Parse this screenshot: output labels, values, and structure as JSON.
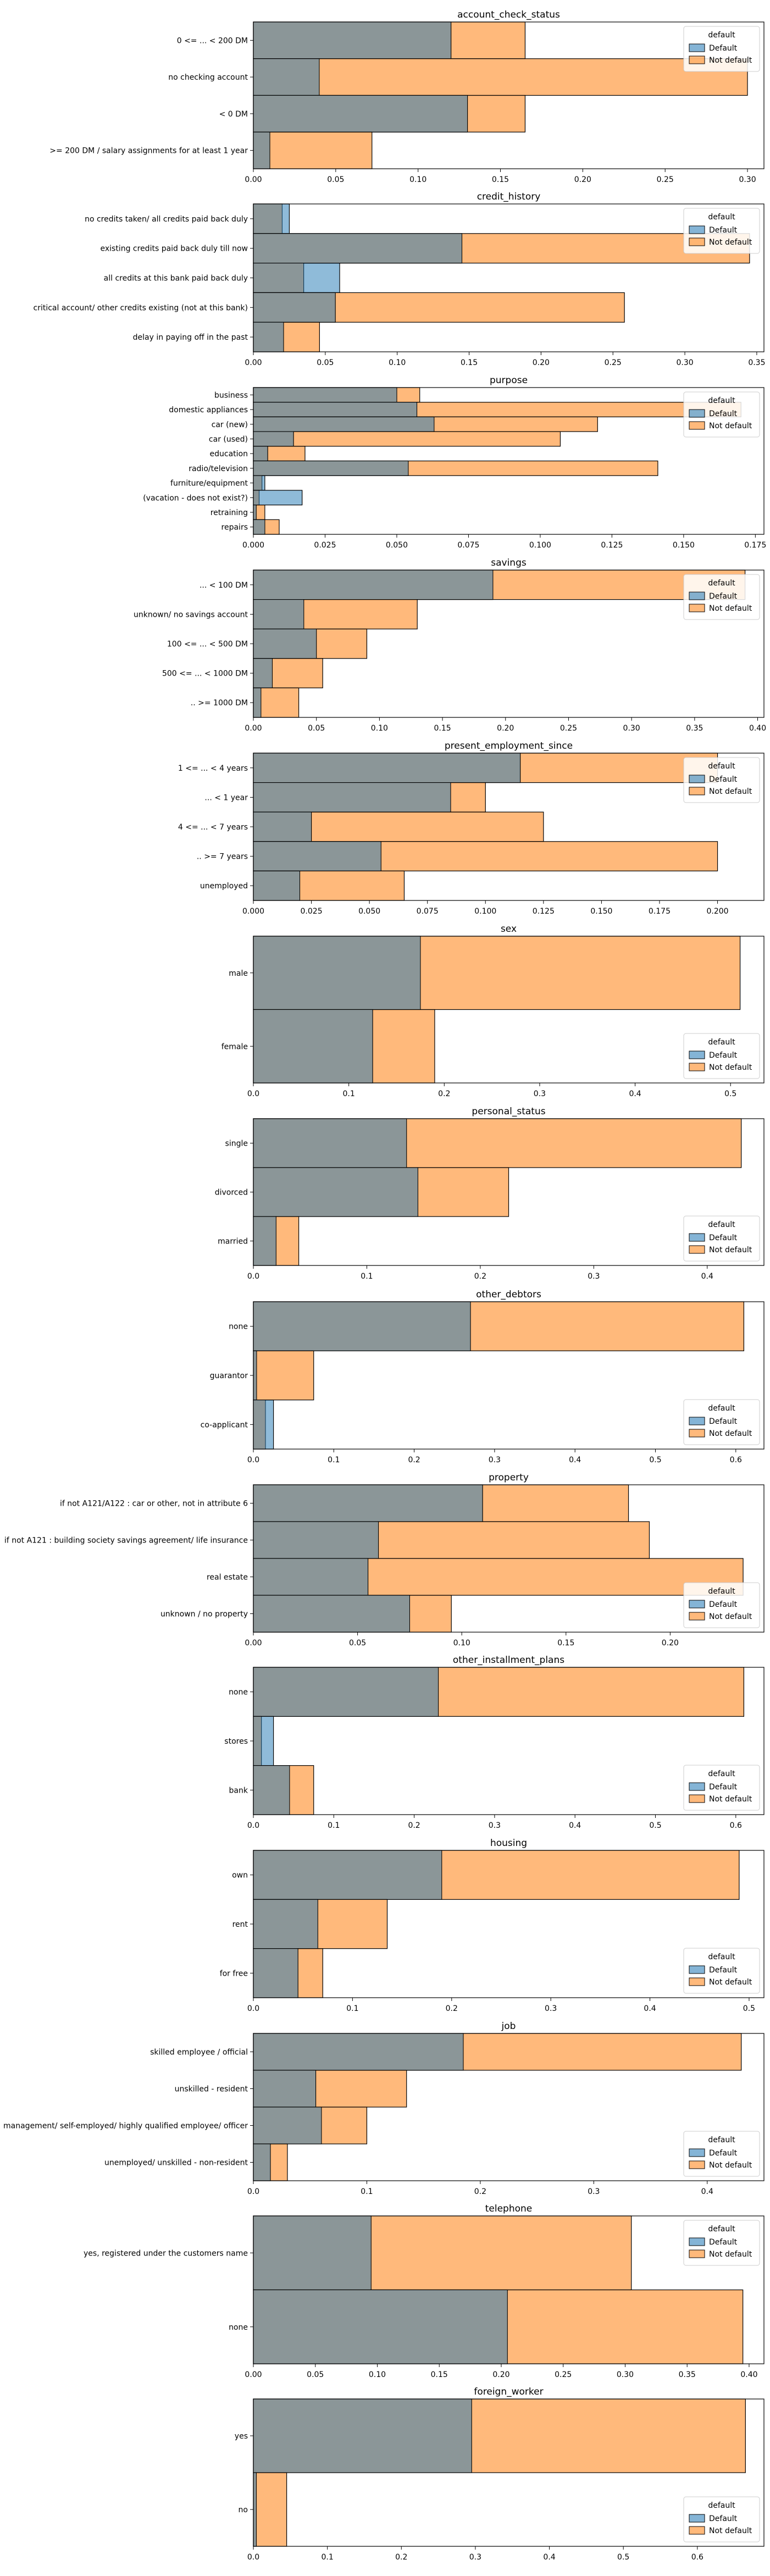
{
  "colors": {
    "default": "#1f77b4",
    "not_default": "#ff7f0e",
    "overlap": "#8b9698"
  },
  "legend": {
    "title": "default",
    "items": [
      "Default",
      "Not default"
    ],
    "placement": "top-right"
  },
  "chart_data": [
    {
      "type": "bar",
      "orientation": "horizontal",
      "stacked": "overlay",
      "title": "account_check_status",
      "categories": [
        "0 <= ... < 200 DM",
        "no checking account",
        "< 0 DM",
        ">= 200 DM / salary assignments for at least 1 year"
      ],
      "series": [
        {
          "name": "Default",
          "values": [
            0.12,
            0.04,
            0.13,
            0.01
          ]
        },
        {
          "name": "Not default",
          "values": [
            0.165,
            0.3,
            0.165,
            0.072
          ]
        }
      ],
      "xlim": [
        0,
        0.31
      ],
      "xticks": [
        0.0,
        0.05,
        0.1,
        0.15,
        0.2,
        0.25,
        0.3
      ],
      "legend_loc": "top-right"
    },
    {
      "type": "bar",
      "orientation": "horizontal",
      "stacked": "overlay",
      "title": "credit_history",
      "categories": [
        "no credits taken/ all credits paid back duly",
        "existing credits paid back duly till now",
        "all credits at this bank paid back duly",
        "critical account/ other credits existing (not at this bank)",
        "delay in paying off in the past"
      ],
      "series": [
        {
          "name": "Default",
          "values": [
            0.025,
            0.145,
            0.06,
            0.057,
            0.021
          ]
        },
        {
          "name": "Not default",
          "values": [
            0.02,
            0.345,
            0.035,
            0.258,
            0.046
          ]
        }
      ],
      "xlim": [
        0,
        0.355
      ],
      "xticks": [
        0.0,
        0.05,
        0.1,
        0.15,
        0.2,
        0.25,
        0.3,
        0.35
      ],
      "legend_loc": "top-right"
    },
    {
      "type": "bar",
      "orientation": "horizontal",
      "stacked": "overlay",
      "title": "purpose",
      "categories": [
        "business",
        "domestic appliances",
        "car (new)",
        "car (used)",
        "education",
        "radio/television",
        "furniture/equipment",
        "(vacation - does not exist?)",
        "retraining",
        "repairs"
      ],
      "series": [
        {
          "name": "Default",
          "values": [
            0.05,
            0.057,
            0.063,
            0.014,
            0.005,
            0.054,
            0.004,
            0.017,
            0.001,
            0.004
          ]
        },
        {
          "name": "Not default",
          "values": [
            0.058,
            0.17,
            0.12,
            0.107,
            0.018,
            0.141,
            0.003,
            0.002,
            0.004,
            0.009
          ]
        }
      ],
      "xlim": [
        0,
        0.178
      ],
      "xticks": [
        0.0,
        0.025,
        0.05,
        0.075,
        0.1,
        0.125,
        0.15,
        0.175
      ],
      "legend_loc": "top-right"
    },
    {
      "type": "bar",
      "orientation": "horizontal",
      "stacked": "overlay",
      "title": "savings",
      "categories": [
        "... < 100 DM",
        "unknown/ no savings account",
        "100 <= ... < 500 DM",
        "500 <= ... < 1000 DM",
        ".. >= 1000 DM"
      ],
      "series": [
        {
          "name": "Default",
          "values": [
            0.19,
            0.04,
            0.05,
            0.015,
            0.006
          ]
        },
        {
          "name": "Not default",
          "values": [
            0.39,
            0.13,
            0.09,
            0.055,
            0.036
          ]
        }
      ],
      "xlim": [
        0,
        0.405
      ],
      "xticks": [
        0.0,
        0.05,
        0.1,
        0.15,
        0.2,
        0.25,
        0.3,
        0.35,
        0.4
      ],
      "legend_loc": "top-right"
    },
    {
      "type": "bar",
      "orientation": "horizontal",
      "stacked": "overlay",
      "title": "present_employment_since",
      "categories": [
        "1 <= ... < 4 years",
        "... < 1 year",
        "4 <= ... < 7 years",
        ".. >= 7 years",
        "unemployed"
      ],
      "series": [
        {
          "name": "Default",
          "values": [
            0.115,
            0.085,
            0.025,
            0.055,
            0.02
          ]
        },
        {
          "name": "Not default",
          "values": [
            0.2,
            0.1,
            0.125,
            0.2,
            0.065
          ]
        }
      ],
      "xlim": [
        0,
        0.22
      ],
      "xticks": [
        0.0,
        0.025,
        0.05,
        0.075,
        0.1,
        0.125,
        0.15,
        0.175,
        0.2
      ],
      "legend_loc": "top-right"
    },
    {
      "type": "bar",
      "orientation": "horizontal",
      "stacked": "overlay",
      "title": "sex",
      "categories": [
        "male",
        "female"
      ],
      "series": [
        {
          "name": "Default",
          "values": [
            0.175,
            0.125
          ]
        },
        {
          "name": "Not default",
          "values": [
            0.51,
            0.19
          ]
        }
      ],
      "xlim": [
        0,
        0.535
      ],
      "xticks": [
        0.0,
        0.1,
        0.2,
        0.3,
        0.4,
        0.5
      ],
      "legend_loc": "bottom-right"
    },
    {
      "type": "bar",
      "orientation": "horizontal",
      "stacked": "overlay",
      "title": "personal_status",
      "categories": [
        "single",
        "divorced",
        "married"
      ],
      "series": [
        {
          "name": "Default",
          "values": [
            0.135,
            0.145,
            0.02
          ]
        },
        {
          "name": "Not default",
          "values": [
            0.43,
            0.225,
            0.04
          ]
        }
      ],
      "xlim": [
        0,
        0.45
      ],
      "xticks": [
        0.0,
        0.1,
        0.2,
        0.3,
        0.4
      ],
      "legend_loc": "bottom-right"
    },
    {
      "type": "bar",
      "orientation": "horizontal",
      "stacked": "overlay",
      "title": "other_debtors",
      "categories": [
        "none",
        "guarantor",
        "co-applicant"
      ],
      "series": [
        {
          "name": "Default",
          "values": [
            0.27,
            0.004,
            0.025
          ]
        },
        {
          "name": "Not default",
          "values": [
            0.61,
            0.075,
            0.015
          ]
        }
      ],
      "xlim": [
        0,
        0.635
      ],
      "xticks": [
        0.0,
        0.1,
        0.2,
        0.3,
        0.4,
        0.5,
        0.6
      ],
      "legend_loc": "bottom-right"
    },
    {
      "type": "bar",
      "orientation": "horizontal",
      "stacked": "overlay",
      "title": "property",
      "categories": [
        "if not A121/A122 : car or other, not in attribute 6",
        "if not A121 : building society savings agreement/ life insurance",
        "real estate",
        "unknown / no property"
      ],
      "series": [
        {
          "name": "Default",
          "values": [
            0.11,
            0.06,
            0.055,
            0.075
          ]
        },
        {
          "name": "Not default",
          "values": [
            0.18,
            0.19,
            0.235,
            0.095
          ]
        }
      ],
      "xlim": [
        0,
        0.245
      ],
      "xticks": [
        0.0,
        0.05,
        0.1,
        0.15,
        0.2
      ],
      "legend_loc": "bottom-right"
    },
    {
      "type": "bar",
      "orientation": "horizontal",
      "stacked": "overlay",
      "title": "other_installment_plans",
      "categories": [
        "none",
        "stores",
        "bank"
      ],
      "series": [
        {
          "name": "Default",
          "values": [
            0.23,
            0.025,
            0.045
          ]
        },
        {
          "name": "Not default",
          "values": [
            0.61,
            0.01,
            0.075
          ]
        }
      ],
      "xlim": [
        0,
        0.635
      ],
      "xticks": [
        0.0,
        0.1,
        0.2,
        0.3,
        0.4,
        0.5,
        0.6
      ],
      "legend_loc": "bottom-right"
    },
    {
      "type": "bar",
      "orientation": "horizontal",
      "stacked": "overlay",
      "title": "housing",
      "categories": [
        "own",
        "rent",
        "for free"
      ],
      "series": [
        {
          "name": "Default",
          "values": [
            0.19,
            0.065,
            0.045
          ]
        },
        {
          "name": "Not default",
          "values": [
            0.49,
            0.135,
            0.07
          ]
        }
      ],
      "xlim": [
        0,
        0.515
      ],
      "xticks": [
        0.0,
        0.1,
        0.2,
        0.3,
        0.4,
        0.5
      ],
      "legend_loc": "bottom-right"
    },
    {
      "type": "bar",
      "orientation": "horizontal",
      "stacked": "overlay",
      "title": "job",
      "categories": [
        "skilled employee / official",
        "unskilled - resident",
        "management/ self-employed/ highly qualified employee/ officer",
        "unemployed/ unskilled - non-resident"
      ],
      "series": [
        {
          "name": "Default",
          "values": [
            0.185,
            0.055,
            0.06,
            0.015
          ]
        },
        {
          "name": "Not default",
          "values": [
            0.43,
            0.135,
            0.1,
            0.03
          ]
        }
      ],
      "xlim": [
        0,
        0.45
      ],
      "xticks": [
        0.0,
        0.1,
        0.2,
        0.3,
        0.4
      ],
      "legend_loc": "bottom-right"
    },
    {
      "type": "bar",
      "orientation": "horizontal",
      "stacked": "overlay",
      "title": "telephone",
      "categories": [
        "yes, registered under the customers name",
        "none"
      ],
      "series": [
        {
          "name": "Default",
          "values": [
            0.095,
            0.205
          ]
        },
        {
          "name": "Not default",
          "values": [
            0.305,
            0.395
          ]
        }
      ],
      "xlim": [
        0,
        0.412
      ],
      "xticks": [
        0.0,
        0.05,
        0.1,
        0.15,
        0.2,
        0.25,
        0.3,
        0.35,
        0.4
      ],
      "legend_loc": "top-right"
    },
    {
      "type": "bar",
      "orientation": "horizontal",
      "stacked": "overlay",
      "title": "foreign_worker",
      "categories": [
        "yes",
        "no"
      ],
      "series": [
        {
          "name": "Default",
          "values": [
            0.295,
            0.004
          ]
        },
        {
          "name": "Not default",
          "values": [
            0.665,
            0.045
          ]
        }
      ],
      "xlim": [
        0,
        0.69
      ],
      "xticks": [
        0.0,
        0.1,
        0.2,
        0.3,
        0.4,
        0.5,
        0.6
      ],
      "legend_loc": "bottom-right"
    }
  ]
}
